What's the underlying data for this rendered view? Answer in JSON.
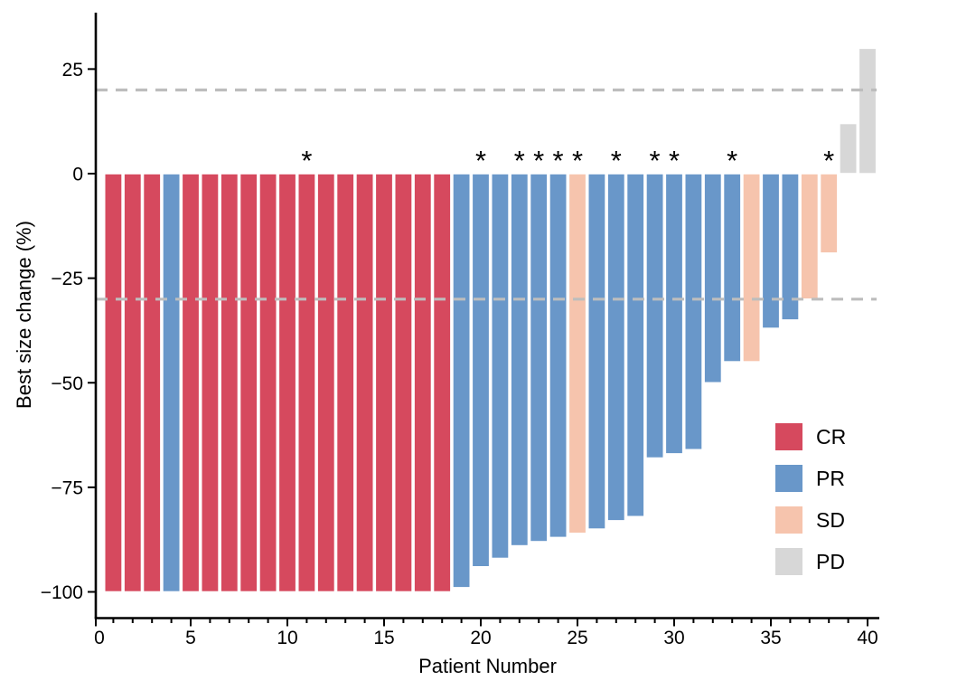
{
  "chart_data": {
    "type": "bar",
    "title": "",
    "xlabel": "Patient Number",
    "ylabel": "Best size change (%)",
    "x_ticks_major": [
      0,
      5,
      10,
      15,
      20,
      25,
      30,
      35,
      40
    ],
    "x_minor_tick_step": 1,
    "y_ticks": [
      25,
      0,
      -25,
      -50,
      -75,
      -100
    ],
    "xlim": [
      0,
      40.6
    ],
    "ylim": [
      -106,
      38
    ],
    "grid": false,
    "legend_position": "inside-right",
    "annotation_symbol": "*",
    "reference_lines": [
      {
        "y": 20,
        "style": "dashed",
        "color": "#BDBDBD"
      },
      {
        "y": -30,
        "style": "dashed",
        "color": "#BDBDBD"
      }
    ],
    "legend": [
      {
        "label": "CR",
        "color": "#D6495E"
      },
      {
        "label": "PR",
        "color": "#6997C9"
      },
      {
        "label": "SD",
        "color": "#F6C4AD"
      },
      {
        "label": "PD",
        "color": "#D7D7D7"
      }
    ],
    "patients": [
      {
        "patient": 1,
        "value": -100,
        "response": "CR",
        "star": false
      },
      {
        "patient": 2,
        "value": -100,
        "response": "CR",
        "star": false
      },
      {
        "patient": 3,
        "value": -100,
        "response": "CR",
        "star": false
      },
      {
        "patient": 4,
        "value": -100,
        "response": "PR",
        "star": false
      },
      {
        "patient": 5,
        "value": -100,
        "response": "CR",
        "star": false
      },
      {
        "patient": 6,
        "value": -100,
        "response": "CR",
        "star": false
      },
      {
        "patient": 7,
        "value": -100,
        "response": "CR",
        "star": false
      },
      {
        "patient": 8,
        "value": -100,
        "response": "CR",
        "star": false
      },
      {
        "patient": 9,
        "value": -100,
        "response": "CR",
        "star": false
      },
      {
        "patient": 10,
        "value": -100,
        "response": "CR",
        "star": false
      },
      {
        "patient": 11,
        "value": -100,
        "response": "CR",
        "star": true
      },
      {
        "patient": 12,
        "value": -100,
        "response": "CR",
        "star": false
      },
      {
        "patient": 13,
        "value": -100,
        "response": "CR",
        "star": false
      },
      {
        "patient": 14,
        "value": -100,
        "response": "CR",
        "star": false
      },
      {
        "patient": 15,
        "value": -100,
        "response": "CR",
        "star": false
      },
      {
        "patient": 16,
        "value": -100,
        "response": "CR",
        "star": false
      },
      {
        "patient": 17,
        "value": -100,
        "response": "CR",
        "star": false
      },
      {
        "patient": 18,
        "value": -100,
        "response": "CR",
        "star": false
      },
      {
        "patient": 19,
        "value": -99,
        "response": "PR",
        "star": false
      },
      {
        "patient": 20,
        "value": -94,
        "response": "PR",
        "star": true
      },
      {
        "patient": 21,
        "value": -92,
        "response": "PR",
        "star": false
      },
      {
        "patient": 22,
        "value": -89,
        "response": "PR",
        "star": true
      },
      {
        "patient": 23,
        "value": -88,
        "response": "PR",
        "star": true
      },
      {
        "patient": 24,
        "value": -87,
        "response": "PR",
        "star": true
      },
      {
        "patient": 25,
        "value": -86,
        "response": "SD",
        "star": true
      },
      {
        "patient": 26,
        "value": -85,
        "response": "PR",
        "star": false
      },
      {
        "patient": 27,
        "value": -83,
        "response": "PR",
        "star": true
      },
      {
        "patient": 28,
        "value": -82,
        "response": "PR",
        "star": false
      },
      {
        "patient": 29,
        "value": -68,
        "response": "PR",
        "star": true
      },
      {
        "patient": 30,
        "value": -67,
        "response": "PR",
        "star": true
      },
      {
        "patient": 31,
        "value": -66,
        "response": "PR",
        "star": false
      },
      {
        "patient": 32,
        "value": -50,
        "response": "PR",
        "star": false
      },
      {
        "patient": 33,
        "value": -45,
        "response": "PR",
        "star": true
      },
      {
        "patient": 34,
        "value": -45,
        "response": "SD",
        "star": false
      },
      {
        "patient": 35,
        "value": -37,
        "response": "PR",
        "star": false
      },
      {
        "patient": 36,
        "value": -35,
        "response": "PR",
        "star": false
      },
      {
        "patient": 37,
        "value": -30,
        "response": "SD",
        "star": false
      },
      {
        "patient": 38,
        "value": -19,
        "response": "SD",
        "star": true
      },
      {
        "patient": 39,
        "value": 12,
        "response": "PD",
        "star": false
      },
      {
        "patient": 40,
        "value": 30,
        "response": "PD",
        "star": false
      }
    ]
  }
}
